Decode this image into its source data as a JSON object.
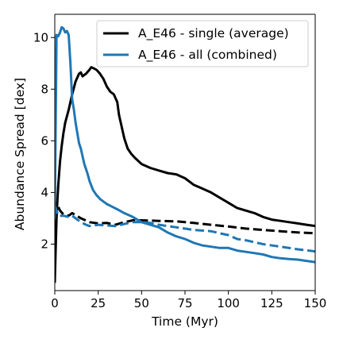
{
  "chart_data": {
    "type": "line",
    "title": "",
    "xlabel": "Time (Myr)",
    "ylabel": "Abundance Spread [dex]",
    "xlim": [
      0,
      150
    ],
    "ylim": [
      0.2,
      10.9
    ],
    "xticks": [
      0,
      25,
      50,
      75,
      100,
      125,
      150
    ],
    "yticks": [
      2,
      4,
      6,
      8,
      10
    ],
    "xtick_labels": [
      "0",
      "25",
      "50",
      "75",
      "100",
      "125",
      "150"
    ],
    "ytick_labels": [
      "2",
      "4",
      "6",
      "8",
      "10"
    ],
    "grid": false,
    "legend_position": "top-right",
    "colors": {
      "single": "#000000",
      "all": "#1f77b4",
      "axes": "#000000"
    },
    "legend": [
      {
        "label": "A_E46 - single (average)",
        "color": "#000000"
      },
      {
        "label": "A_E46 - all (combined)",
        "color": "#1f77b4"
      }
    ],
    "series": [
      {
        "name": "A_E46 - single (average)",
        "color": "#000000",
        "style": "solid",
        "x": [
          0,
          0.5,
          1,
          1.5,
          2,
          3,
          4,
          5,
          6,
          8,
          10,
          12,
          14,
          15,
          16,
          17,
          18,
          20,
          21,
          22,
          24,
          26,
          28,
          30,
          32,
          34,
          36,
          37,
          38,
          40,
          42,
          44,
          46,
          50,
          55,
          60,
          65,
          70,
          75,
          80,
          85,
          90,
          95,
          100,
          105,
          110,
          115,
          120,
          125,
          130,
          135,
          140,
          145,
          150
        ],
        "y": [
          0.5,
          1.8,
          3.0,
          3.7,
          4.3,
          5.2,
          5.8,
          6.3,
          6.7,
          7.2,
          7.8,
          8.3,
          8.6,
          8.65,
          8.5,
          8.55,
          8.6,
          8.75,
          8.85,
          8.82,
          8.75,
          8.6,
          8.4,
          8.1,
          7.9,
          7.8,
          7.5,
          7.0,
          6.7,
          6.1,
          5.7,
          5.5,
          5.35,
          5.1,
          4.95,
          4.85,
          4.75,
          4.7,
          4.55,
          4.3,
          4.15,
          4.0,
          3.8,
          3.6,
          3.4,
          3.3,
          3.2,
          3.05,
          2.95,
          2.9,
          2.85,
          2.8,
          2.75,
          2.7
        ]
      },
      {
        "name": "single (dashed)",
        "color": "#000000",
        "style": "dashed",
        "x": [
          0,
          1,
          2,
          3,
          5,
          8,
          10,
          15,
          20,
          25,
          30,
          35,
          40,
          45,
          50,
          60,
          70,
          80,
          90,
          100,
          110,
          120,
          130,
          140,
          150
        ],
        "y": [
          3.3,
          3.6,
          3.45,
          3.3,
          3.15,
          3.1,
          3.2,
          3.0,
          2.85,
          2.8,
          2.82,
          2.75,
          2.85,
          2.92,
          2.92,
          2.9,
          2.88,
          2.82,
          2.75,
          2.68,
          2.6,
          2.55,
          2.5,
          2.45,
          2.42
        ]
      },
      {
        "name": "A_E46 - all (combined)",
        "color": "#1f77b4",
        "style": "solid",
        "x": [
          0,
          1,
          2,
          3,
          4,
          5,
          6,
          7,
          8,
          9,
          10,
          11,
          12,
          13,
          14,
          15,
          16,
          17,
          18,
          19,
          20,
          22,
          24,
          26,
          28,
          30,
          33,
          36,
          40,
          45,
          50,
          55,
          60,
          65,
          70,
          75,
          80,
          85,
          90,
          95,
          100,
          105,
          110,
          115,
          120,
          125,
          130,
          135,
          140,
          145,
          150
        ],
        "y": [
          3.0,
          10.1,
          10.05,
          10.2,
          10.4,
          10.35,
          10.2,
          10.25,
          10.1,
          9.0,
          7.6,
          7.2,
          6.7,
          6.3,
          5.9,
          5.7,
          5.4,
          5.1,
          4.9,
          4.7,
          4.45,
          4.1,
          3.9,
          3.75,
          3.65,
          3.55,
          3.45,
          3.35,
          3.2,
          3.05,
          2.85,
          2.75,
          2.65,
          2.45,
          2.3,
          2.2,
          2.05,
          1.95,
          1.9,
          1.85,
          1.85,
          1.75,
          1.7,
          1.65,
          1.6,
          1.5,
          1.45,
          1.42,
          1.4,
          1.35,
          1.3
        ]
      },
      {
        "name": "all (dashed)",
        "color": "#1f77b4",
        "style": "dashed",
        "x": [
          0,
          2,
          5,
          8,
          10,
          12,
          15,
          18,
          20,
          25,
          30,
          35,
          40,
          45,
          50,
          55,
          60,
          70,
          80,
          90,
          95,
          100,
          105,
          110,
          120,
          130,
          140,
          150
        ],
        "y": [
          3.5,
          3.1,
          3.1,
          3.05,
          3.1,
          3.0,
          2.85,
          2.75,
          2.7,
          2.75,
          2.72,
          2.7,
          2.78,
          2.85,
          2.85,
          2.82,
          2.75,
          2.65,
          2.55,
          2.5,
          2.42,
          2.35,
          2.2,
          2.15,
          2.0,
          1.9,
          1.8,
          1.72
        ]
      }
    ]
  }
}
